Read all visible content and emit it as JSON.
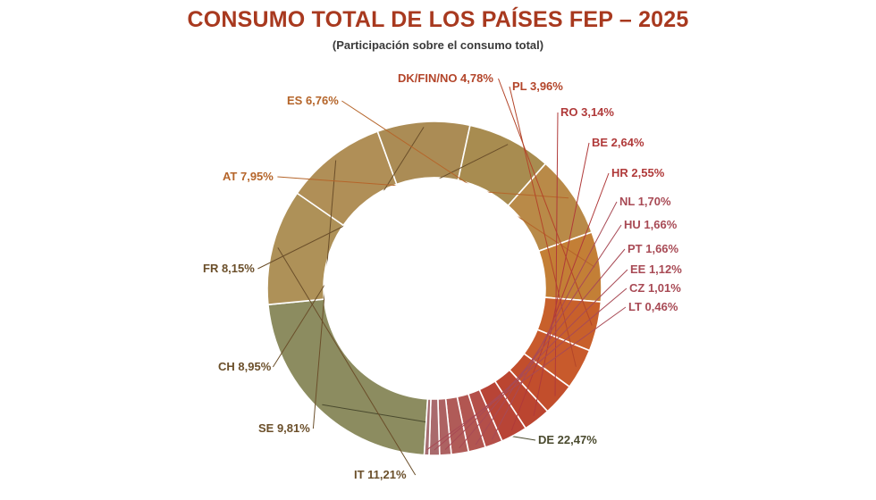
{
  "chart_data": {
    "type": "pie",
    "title": "CONSUMO TOTAL DE LOS PAÍSES FEP – 2025",
    "subtitle": "(Participación sobre el consumo total)",
    "slices": [
      {
        "label": "DE 22,47%",
        "value": 22.47,
        "color": "#8c8c60"
      },
      {
        "label": "IT 11,21%",
        "value": 11.21,
        "color": "#ae9158"
      },
      {
        "label": "SE 9,81%",
        "value": 9.81,
        "color": "#b08f57"
      },
      {
        "label": "CH 8,95%",
        "value": 8.95,
        "color": "#ab8c55"
      },
      {
        "label": "FR 8,15%",
        "value": 8.15,
        "color": "#a88c50"
      },
      {
        "label": "AT 7,95%",
        "value": 7.95,
        "color": "#b98a48"
      },
      {
        "label": "ES 6,76%",
        "value": 6.76,
        "color": "#c37f36"
      },
      {
        "label": "DK/FIN/NO 4,78%",
        "value": 4.78,
        "color": "#c8602b"
      },
      {
        "label": "PL 3,96%",
        "value": 3.96,
        "color": "#c85a2c"
      },
      {
        "label": "RO 3,14%",
        "value": 3.14,
        "color": "#c24e2c"
      },
      {
        "label": "BE 2,64%",
        "value": 2.64,
        "color": "#bb4530"
      },
      {
        "label": "HR 2,55%",
        "value": 2.55,
        "color": "#b84436"
      },
      {
        "label": "NL 1,70%",
        "value": 1.7,
        "color": "#b44f49"
      },
      {
        "label": "HU 1,66%",
        "value": 1.66,
        "color": "#b25651"
      },
      {
        "label": "PT 1,66%",
        "value": 1.66,
        "color": "#b05b58"
      },
      {
        "label": "EE 1,12%",
        "value": 1.12,
        "color": "#ad6262"
      },
      {
        "label": "CZ 1,01%",
        "value": 1.01,
        "color": "#a96a6c"
      },
      {
        "label": "LT 0,46%",
        "value": 0.46,
        "color": "#a66e72"
      }
    ]
  }
}
